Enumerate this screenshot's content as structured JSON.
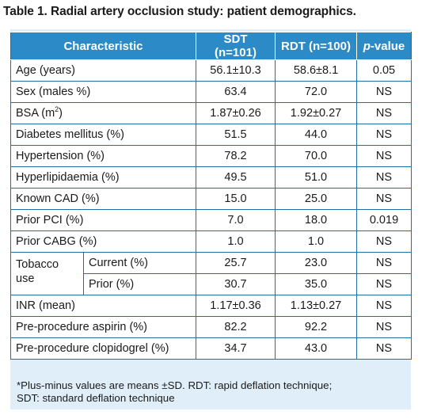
{
  "title": {
    "label": "Table 1.",
    "text": "Radial artery occlusion study: patient demographics."
  },
  "table": {
    "headers": {
      "characteristic": "Characteristic",
      "sdt": "SDT (n=101)",
      "rdt": "RDT (n=100)",
      "p_italic": "p",
      "p_rest": "-value"
    },
    "rows": [
      {
        "label": "Age (years)",
        "sdt": "56.1±10.3",
        "rdt": "58.6±8.1",
        "p": "0.05"
      },
      {
        "label": "Sex (males %)",
        "sdt": "63.4",
        "rdt": "72.0",
        "p": "NS"
      },
      {
        "label_main": "BSA (m",
        "label_sup": "2",
        "label_end": ")",
        "sdt": "1.87±0.26",
        "rdt": "1.92±0.27",
        "p": "NS"
      },
      {
        "label": "Diabetes mellitus (%)",
        "sdt": "51.5",
        "rdt": "44.0",
        "p": "NS"
      },
      {
        "label": "Hypertension (%)",
        "sdt": "78.2",
        "rdt": "70.0",
        "p": "NS"
      },
      {
        "label": "Hyperlipidaemia (%)",
        "sdt": "49.5",
        "rdt": "51.0",
        "p": "NS"
      },
      {
        "label": "Known CAD (%)",
        "sdt": "15.0",
        "rdt": "25.0",
        "p": "NS"
      },
      {
        "label": "Prior PCI (%)",
        "sdt": "7.0",
        "rdt": "18.0",
        "p": "0.019"
      },
      {
        "label": "Prior CABG (%)",
        "sdt": "1.0",
        "rdt": "1.0",
        "p": "NS"
      }
    ],
    "tobacco": {
      "group": "Tobacco use",
      "current": {
        "label": "Current (%)",
        "sdt": "25.7",
        "rdt": "23.0",
        "p": "NS"
      },
      "prior": {
        "label": "Prior (%)",
        "sdt": "30.7",
        "rdt": "35.0",
        "p": "NS"
      }
    },
    "rows_after": [
      {
        "label": "INR (mean)",
        "sdt": "1.17±0.36",
        "rdt": "1.13±0.27",
        "p": "NS"
      },
      {
        "label": "Pre-procedure aspirin (%)",
        "sdt": "82.2",
        "rdt": "92.2",
        "p": "NS"
      },
      {
        "label": "Pre-procedure clopidogrel (%)",
        "sdt": "34.7",
        "rdt": "43.0",
        "p": "NS"
      }
    ]
  },
  "footnote": {
    "line1": "*Plus-minus values are means ±SD. RDT: rapid deflation technique;",
    "line2": "SDT: standard deflation technique"
  },
  "colors": {
    "header_bg": "#2c8ac7",
    "panel_bg": "#dfeef8",
    "border": "#1f6fa6"
  }
}
